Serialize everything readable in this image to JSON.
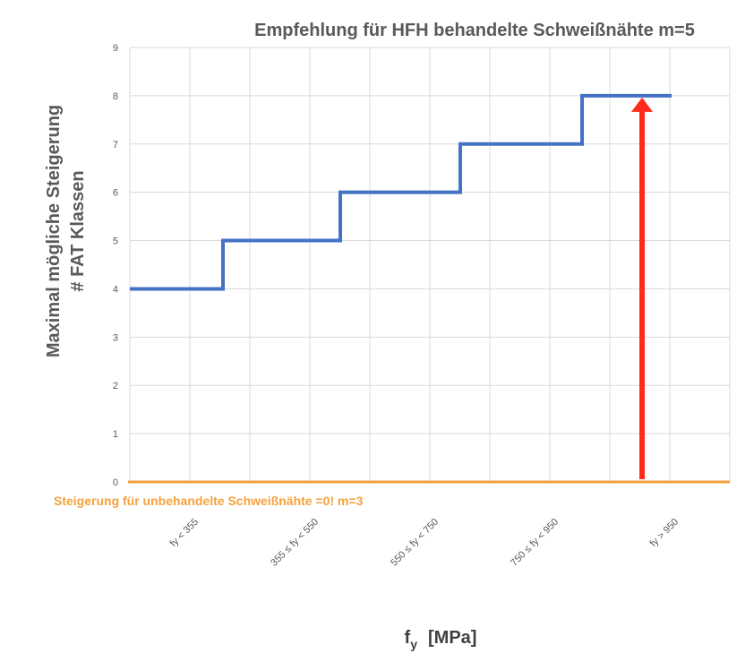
{
  "chart_data": {
    "type": "line",
    "title": "Empfehlung für HFH behandelte Schweißnähte m=5",
    "xlabel_main": "f",
    "xlabel_sub": "y",
    "xlabel_unit": "[MPa]",
    "ylabel_line1": "Maximal mögliche Steigerung",
    "ylabel_line2": "# FAT Klassen",
    "categories": [
      "fy < 355",
      "355 ≤ fy < 550",
      "550 ≤ fy < 750",
      "750 ≤ fy < 950",
      "fy > 950"
    ],
    "ylim": [
      0,
      9
    ],
    "yticks": [
      "0",
      "1",
      "2",
      "3",
      "4",
      "5",
      "6",
      "7",
      "8",
      "9"
    ],
    "grid": true,
    "series": [
      {
        "values": [
          4,
          5,
          6,
          7,
          8
        ],
        "color": "#4472c4",
        "style": "step"
      },
      {
        "values": [
          0,
          0,
          0,
          0,
          0
        ],
        "color": "#f4a23c",
        "style": "line"
      }
    ],
    "annotations": {
      "baseline_note": "Steigerung für unbehandelte Schweißnähte =0! m=3",
      "baseline_note_color": "#f4a23c",
      "arrow": {
        "category": "fy > 950",
        "from": 0,
        "to": 8,
        "color": "#ff2a1a"
      }
    }
  }
}
